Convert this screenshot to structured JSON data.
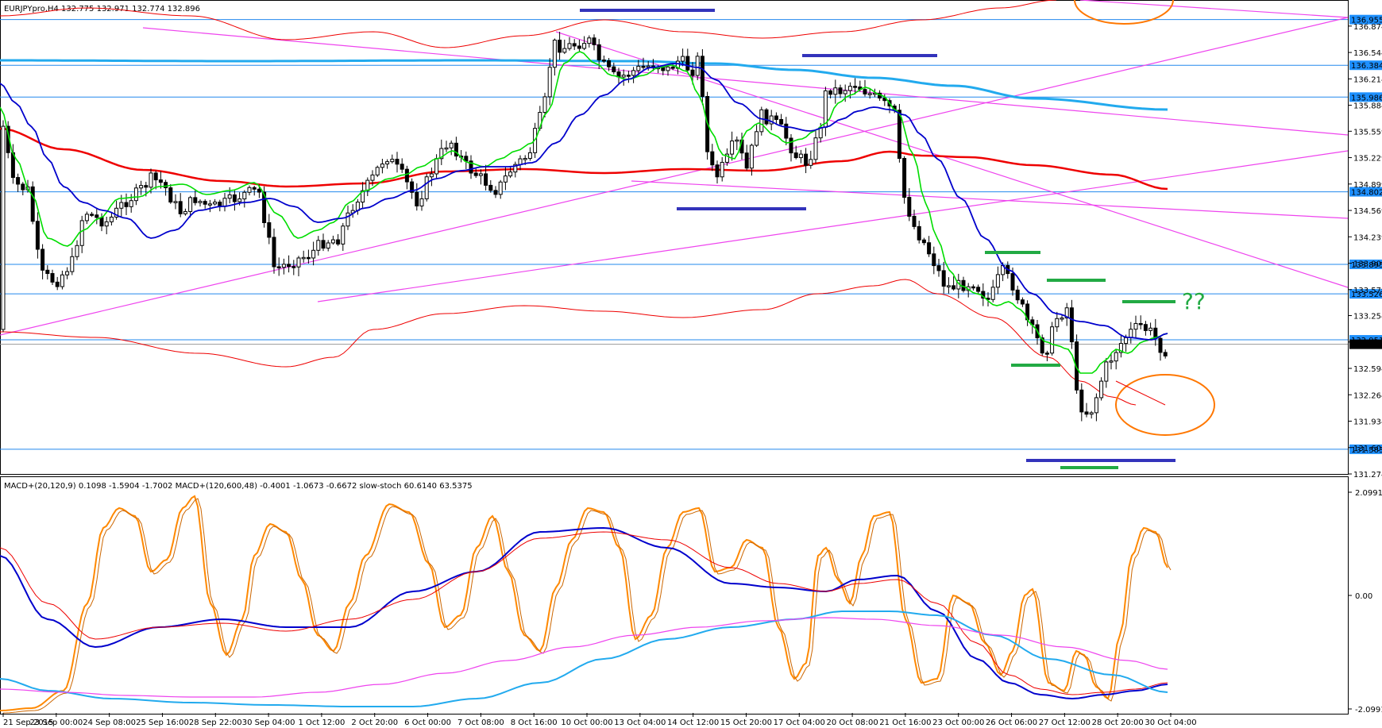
{
  "header": {
    "main": "EURJPYpro,H4  132.775 132.971 132.774 132.896",
    "sub": "MACD+(20,120,9) 0.1098 -1.5904 -1.7002  MACD+(120,600,48) -0.4001 -1.0673 -0.6672  slow-stoch 60.6140 63.5375"
  },
  "annotation": "??",
  "colors": {
    "bull_candle": "#ffffff",
    "bear_candle": "#000000",
    "fast_ma": "#00dd00",
    "slow_ma": "#0000cc",
    "long_ma": "#ee0000",
    "envelope": "#ee0000",
    "trend_cyan": "#22aaee",
    "trendlines": "#ee44ee",
    "level_lines": "#2288ee",
    "level_label_bg": "#1e90ff",
    "stoch": "#ff8800",
    "highlight_blue": "#3333bb",
    "highlight_green": "#22aa44",
    "ellipse": "#ff7700"
  },
  "chart_data": {
    "type": "candlestick",
    "symbol": "EURJPYpro",
    "timeframe": "H4",
    "price_axis": {
      "ticks": [
        "136.874",
        "136.544",
        "136.214",
        "135.884",
        "135.559",
        "135.229",
        "134.899",
        "134.569",
        "134.239",
        "133.909",
        "133.579",
        "133.254",
        "132.924",
        "132.594",
        "132.264",
        "131.934",
        "131.604",
        "131.274"
      ],
      "range": [
        131.274,
        137.2
      ]
    },
    "level_labels": [
      "136.955",
      "136.384",
      "135.986",
      "134.802",
      "133.895",
      "133.526",
      "132.951",
      "131.583"
    ],
    "time_axis": [
      "21 Sep 2015",
      "23 Sep 00:00",
      "24 Sep 08:00",
      "25 Sep 16:00",
      "28 Sep 22:00",
      "30 Sep 04:00",
      "1 Oct 12:00",
      "2 Oct 20:00",
      "6 Oct 00:00",
      "7 Oct 08:00",
      "8 Oct 16:00",
      "10 Oct 00:00",
      "13 Oct 04:00",
      "14 Oct 12:00",
      "15 Oct 20:00",
      "17 Oct 04:00",
      "20 Oct 08:00",
      "21 Oct 16:00",
      "23 Oct 00:00",
      "26 Oct 06:00",
      "27 Oct 12:00",
      "28 Oct 20:00",
      "30 Oct 04:00"
    ],
    "sub_axis": {
      "ticks": [
        "2.0991",
        "0.00",
        "-2.0991"
      ]
    }
  }
}
